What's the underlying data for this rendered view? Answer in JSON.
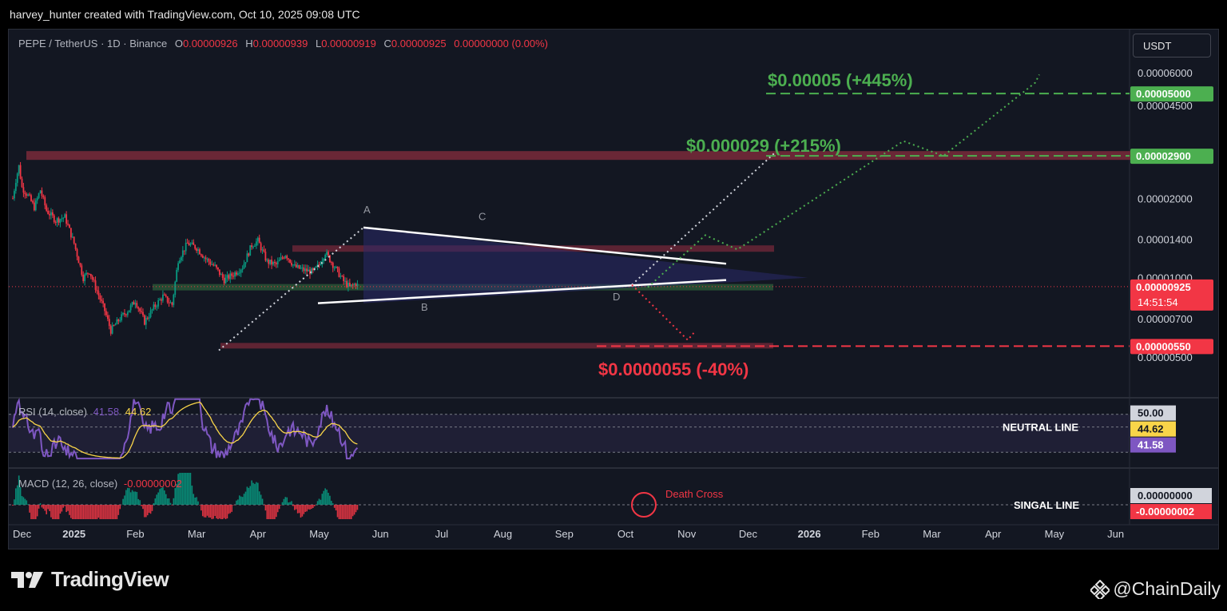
{
  "header": {
    "title": "harvey_hunter created with TradingView.com, Oct 10, 2025 09:08 UTC"
  },
  "legend": {
    "symbol": "PEPE / TetherUS · 1D · Binance",
    "o_label": "O",
    "o_value": "0.00000926",
    "h_label": "H",
    "h_value": "0.00000939",
    "l_label": "L",
    "l_value": "0.00000919",
    "c_label": "C",
    "c_value": "0.00000925",
    "change": "0.00000000 (0.00%)"
  },
  "currency_button": "USDT",
  "rsi_legend": {
    "name": "RSI (14, close)",
    "value1": "41.58",
    "value2": "44.62"
  },
  "macd_legend": {
    "name": "MACD (12, 26, close)",
    "value": "-0.00000002"
  },
  "colors": {
    "up": "#089981",
    "down": "#f23645",
    "bull_target": "#4caf50",
    "bear_target": "#f23645",
    "rsi": "#7e57c2",
    "rsi_ma": "#f9d549",
    "zone": "#7a2a3a",
    "support_zone": "#2e5e3a"
  },
  "chart_data": {
    "type": "candlestick",
    "price_axis": {
      "scale": "log",
      "ticks": [
        "0.00006000",
        "0.00004500",
        "0.00002000",
        "0.00001400",
        "0.00001000",
        "0.00000700",
        "0.00000500"
      ]
    },
    "time_axis": {
      "ticks": [
        "Dec",
        "2025",
        "Feb",
        "Mar",
        "Apr",
        "May",
        "Jun",
        "Jul",
        "Aug",
        "Sep",
        "Oct",
        "Nov",
        "Dec",
        "2026",
        "Feb",
        "Mar",
        "Apr",
        "May",
        "Jun"
      ]
    },
    "last_price": {
      "value": "0.00000925",
      "countdown": "14:51:54"
    },
    "price_path": [
      {
        "t": 0,
        "p": 2e-05
      },
      {
        "t": 0.05,
        "p": 2.35e-05
      },
      {
        "t": 0.1,
        "p": 2.65e-05
      },
      {
        "t": 0.15,
        "p": 2.2e-05
      },
      {
        "t": 0.25,
        "p": 2.05e-05
      },
      {
        "t": 0.35,
        "p": 1.85e-05
      },
      {
        "t": 0.45,
        "p": 2.15e-05
      },
      {
        "t": 0.55,
        "p": 1.8e-05
      },
      {
        "t": 0.7,
        "p": 1.65e-05
      },
      {
        "t": 0.85,
        "p": 1.7e-05
      },
      {
        "t": 1.0,
        "p": 1.35e-05
      },
      {
        "t": 1.15,
        "p": 1e-05
      },
      {
        "t": 1.25,
        "p": 1.06e-05
      },
      {
        "t": 1.35,
        "p": 9.2e-06
      },
      {
        "t": 1.5,
        "p": 7.5e-06
      },
      {
        "t": 1.6,
        "p": 6.3e-06
      },
      {
        "t": 1.75,
        "p": 7e-06
      },
      {
        "t": 1.9,
        "p": 7.6e-06
      },
      {
        "t": 2.0,
        "p": 8.2e-06
      },
      {
        "t": 2.15,
        "p": 6.8e-06
      },
      {
        "t": 2.3,
        "p": 7.7e-06
      },
      {
        "t": 2.45,
        "p": 8.5e-06
      },
      {
        "t": 2.6,
        "p": 7.9e-06
      },
      {
        "t": 2.7,
        "p": 1.17e-05
      },
      {
        "t": 2.85,
        "p": 1.35e-05
      },
      {
        "t": 3.0,
        "p": 1.3e-05
      },
      {
        "t": 3.15,
        "p": 1.18e-05
      },
      {
        "t": 3.3,
        "p": 1.1e-05
      },
      {
        "t": 3.45,
        "p": 9.8e-06
      },
      {
        "t": 3.6,
        "p": 1.03e-05
      },
      {
        "t": 3.75,
        "p": 1.1e-05
      },
      {
        "t": 3.9,
        "p": 1.33e-05
      },
      {
        "t": 4.0,
        "p": 1.38e-05
      },
      {
        "t": 4.15,
        "p": 1.15e-05
      },
      {
        "t": 4.3,
        "p": 1.12e-05
      },
      {
        "t": 4.45,
        "p": 1.23e-05
      },
      {
        "t": 4.6,
        "p": 1.1e-05
      },
      {
        "t": 4.75,
        "p": 1.07e-05
      },
      {
        "t": 4.9,
        "p": 1.05e-05
      },
      {
        "t": 5.0,
        "p": 1.12e-05
      },
      {
        "t": 5.1,
        "p": 1.25e-05
      },
      {
        "t": 5.25,
        "p": 1.1e-05
      },
      {
        "t": 5.4,
        "p": 9.7e-06
      },
      {
        "t": 5.5,
        "p": 9.2e-06
      },
      {
        "t": 5.6,
        "p": 9.5e-06
      },
      {
        "t": 5.65,
        "p": 9.25e-06
      }
    ],
    "levels": [
      {
        "price": 5e-05,
        "label": "0.00005000",
        "target_text": "$0.00005 (+445%)",
        "kind": "bull"
      },
      {
        "price": 2.9e-05,
        "label": "0.00002900",
        "target_text": "$0.000029 (+215%)",
        "kind": "bull"
      },
      {
        "price": 5.5e-06,
        "label": "0.00000550",
        "target_text": "$0.0000055 (-40%)",
        "kind": "bear"
      }
    ],
    "pattern_labels": [
      "A",
      "B",
      "C",
      "D"
    ],
    "rsi": {
      "upper": "50.00",
      "ma": "44.62",
      "value": "41.58",
      "line_label": "NEUTRAL LINE"
    },
    "macd": {
      "upper": "0.00000000",
      "value": "-0.00000002",
      "line_label": "SINGAL LINE",
      "annotation": "Death Cross"
    }
  },
  "footer": {
    "tv_brand": "TradingView",
    "watermark": "@ChainDaily"
  }
}
